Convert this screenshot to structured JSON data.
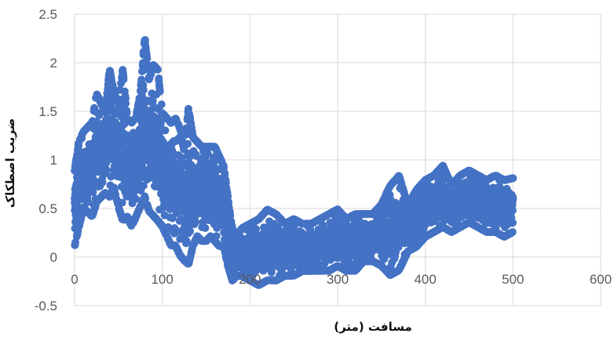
{
  "chart_data": {
    "type": "scatter",
    "xlabel": "مسافت (متر)",
    "ylabel": "ضریب اصطکاک",
    "xlim": [
      0,
      600
    ],
    "ylim": [
      -0.5,
      2.5
    ],
    "x_ticks": [
      "0",
      "100",
      "200",
      "300",
      "400",
      "500",
      "600"
    ],
    "y_ticks": [
      "-0.5",
      "0",
      "0.5",
      "1",
      "1.5",
      "2",
      "2.5"
    ],
    "grid": true,
    "legend": "none",
    "marker_color": "#4472C4",
    "envelope": {
      "x": [
        0,
        5,
        10,
        20,
        25,
        30,
        35,
        40,
        45,
        50,
        55,
        60,
        65,
        70,
        75,
        80,
        85,
        90,
        95,
        100,
        105,
        110,
        115,
        120,
        125,
        130,
        135,
        140,
        145,
        150,
        155,
        160,
        165,
        170,
        175,
        180,
        185,
        190,
        200,
        210,
        220,
        230,
        240,
        250,
        260,
        270,
        280,
        290,
        300,
        310,
        320,
        330,
        340,
        350,
        360,
        370,
        380,
        390,
        400,
        410,
        420,
        430,
        440,
        450,
        460,
        470,
        480,
        490,
        500
      ],
      "ymax": [
        0.9,
        1.2,
        1.3,
        1.4,
        1.7,
        1.6,
        1.5,
        1.95,
        1.7,
        1.6,
        1.95,
        1.45,
        1.4,
        1.45,
        1.7,
        2.28,
        1.85,
        2.0,
        1.95,
        1.5,
        1.45,
        1.4,
        1.45,
        1.35,
        1.1,
        1.55,
        1.25,
        1.2,
        1.15,
        1.15,
        1.15,
        1.15,
        1.05,
        0.95,
        0.6,
        0.3,
        0.2,
        0.3,
        0.35,
        0.4,
        0.5,
        0.45,
        0.35,
        0.4,
        0.35,
        0.35,
        0.4,
        0.45,
        0.5,
        0.4,
        0.45,
        0.45,
        0.45,
        0.55,
        0.75,
        0.85,
        0.55,
        0.7,
        0.8,
        0.85,
        0.95,
        0.75,
        0.85,
        0.9,
        0.85,
        0.8,
        0.85,
        0.8,
        0.82
      ],
      "ymin": [
        0.1,
        0.3,
        0.5,
        0.4,
        0.55,
        0.6,
        0.65,
        0.6,
        0.7,
        0.5,
        0.35,
        0.4,
        0.3,
        0.4,
        0.5,
        0.6,
        0.45,
        0.4,
        0.35,
        0.3,
        0.2,
        0.1,
        0.1,
        0.0,
        -0.05,
        -0.1,
        0.1,
        0.2,
        0.15,
        0.15,
        0.2,
        0.15,
        0.1,
        0.1,
        -0.1,
        -0.25,
        -0.2,
        -0.2,
        -0.25,
        -0.3,
        -0.25,
        -0.25,
        -0.2,
        -0.2,
        -0.15,
        -0.15,
        -0.15,
        -0.15,
        -0.1,
        -0.15,
        -0.15,
        -0.05,
        -0.05,
        -0.1,
        -0.2,
        -0.15,
        0.05,
        0.1,
        0.2,
        0.25,
        0.3,
        0.25,
        0.3,
        0.35,
        0.3,
        0.25,
        0.25,
        0.2,
        0.25
      ],
      "samples_per_meter": 4
    }
  }
}
